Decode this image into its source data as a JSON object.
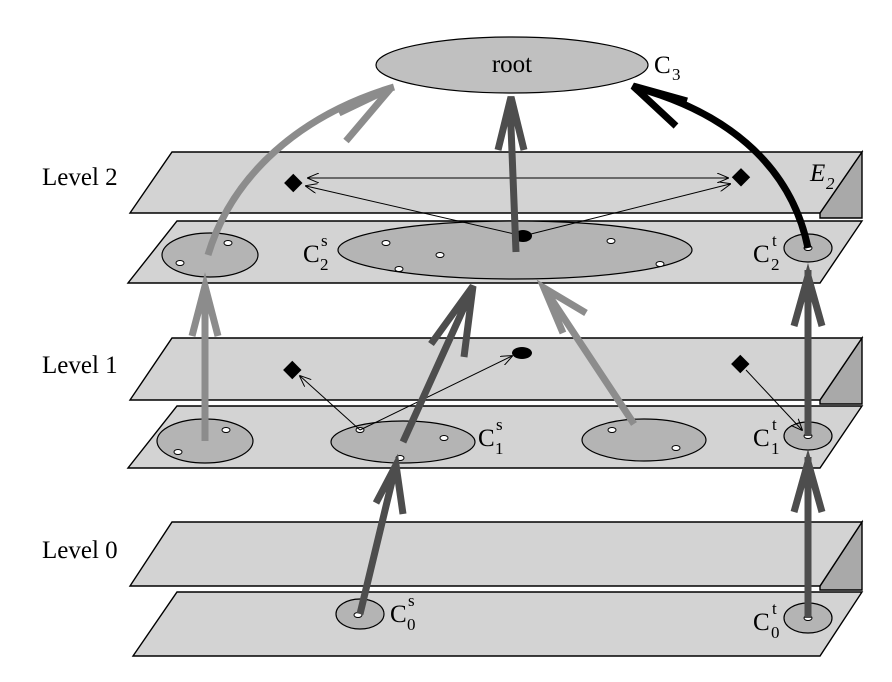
{
  "levels": {
    "level2": "Level 2",
    "level1": "Level 1",
    "level0": "Level 0"
  },
  "root": {
    "label": "root",
    "cluster": "C",
    "index": "3"
  },
  "edge_label": {
    "letter": "E",
    "index": "2"
  },
  "clusters": {
    "c2s": {
      "base": "C",
      "sup": "s",
      "sub": "2"
    },
    "c2t": {
      "base": "C",
      "sup": "t",
      "sub": "2"
    },
    "c1s": {
      "base": "C",
      "sup": "s",
      "sub": "1"
    },
    "c1t": {
      "base": "C",
      "sup": "t",
      "sub": "1"
    },
    "c0s": {
      "base": "C",
      "sup": "s",
      "sub": "0"
    },
    "c0t": {
      "base": "C",
      "sup": "t",
      "sub": "0"
    }
  },
  "colors": {
    "plane": "#d3d3d3",
    "plane_side": "#a9a9a9",
    "cluster": "#b4b4b4",
    "arrow_dark": "#4d4d4d",
    "arrow_light": "#8c8c8c",
    "arrow_black": "#000000"
  }
}
